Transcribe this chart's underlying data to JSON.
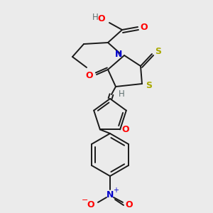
{
  "bg_color": "#ebebeb",
  "bond_color": "#1a1a1a",
  "colors": {
    "O": "#ff0000",
    "N": "#0000cc",
    "S": "#aaaa00",
    "H": "#607070",
    "C": "#1a1a1a"
  },
  "figsize": [
    3.0,
    3.0
  ],
  "dpi": 100
}
